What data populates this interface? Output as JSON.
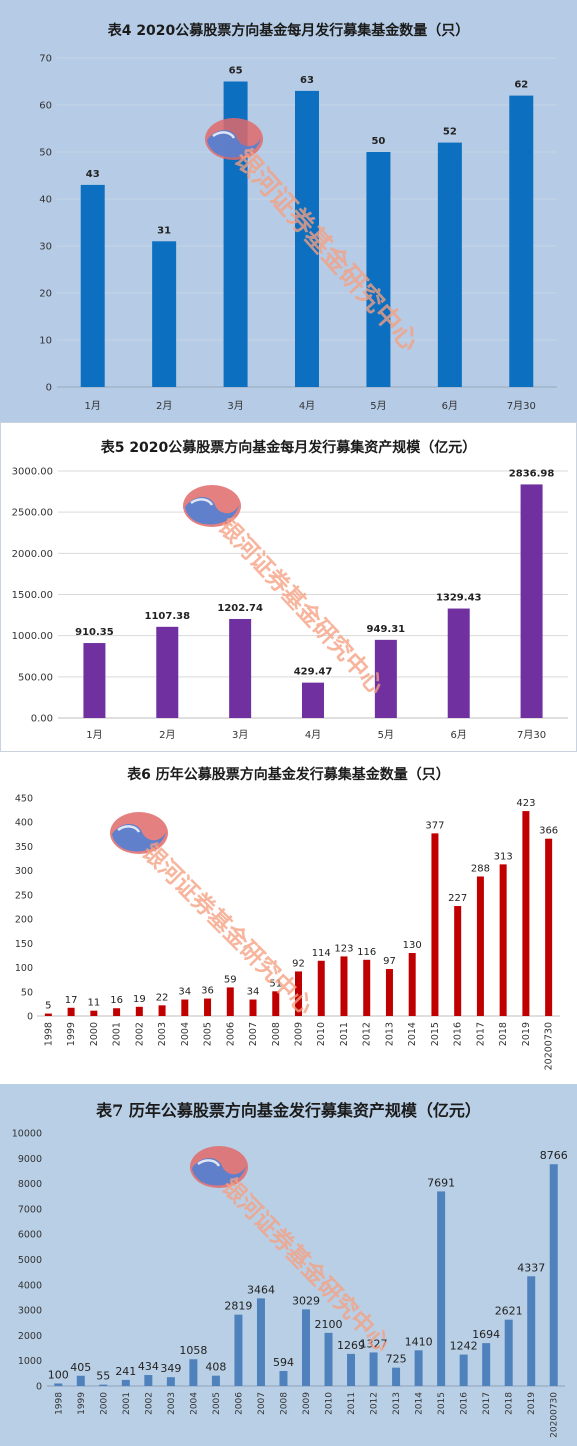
{
  "watermark": {
    "text": "银河证券基金研究中心"
  },
  "chart_data": [
    {
      "type": "bar",
      "title": "表4  2020公募股票方向基金每月发行募集基金数量（只）",
      "categories": [
        "1月",
        "2月",
        "3月",
        "4月",
        "5月",
        "6月",
        "7月30"
      ],
      "values": [
        43,
        31,
        65,
        63,
        50,
        52,
        62
      ],
      "labels": [
        "43",
        "31",
        "65",
        "63",
        "50",
        "52",
        "62"
      ],
      "ylim": [
        0,
        70
      ],
      "yticks": [
        "0",
        "10",
        "20",
        "30",
        "40",
        "50",
        "60",
        "70"
      ],
      "grid": true,
      "color": "#0c6fbf"
    },
    {
      "type": "bar",
      "title": "表5  2020公募股票方向基金每月发行募集资产规模（亿元）",
      "categories": [
        "1月",
        "2月",
        "3月",
        "4月",
        "5月",
        "6月",
        "7月30"
      ],
      "values": [
        910.35,
        1107.38,
        1202.74,
        429.47,
        949.31,
        1329.43,
        2836.98
      ],
      "labels": [
        "910.35",
        "1107.38",
        "1202.74",
        "429.47",
        "949.31",
        "1329.43",
        "2836.98"
      ],
      "ylim": [
        0,
        3000
      ],
      "yticks": [
        "0.00",
        "500.00",
        "1000.00",
        "1500.00",
        "2000.00",
        "2500.00",
        "3000.00"
      ],
      "grid": true,
      "color": "#7030a0"
    },
    {
      "type": "bar",
      "title": "表6  历年公募股票方向基金发行募集基金数量（只）",
      "categories": [
        "1998",
        "1999",
        "2000",
        "2001",
        "2002",
        "2003",
        "2004",
        "2005",
        "2006",
        "2007",
        "2008",
        "2009",
        "2010",
        "2011",
        "2012",
        "2013",
        "2014",
        "2015",
        "2016",
        "2017",
        "2018",
        "2019",
        "20200730"
      ],
      "values": [
        5,
        17,
        11,
        16,
        19,
        22,
        34,
        36,
        59,
        34,
        51,
        92,
        114,
        123,
        116,
        97,
        130,
        377,
        227,
        288,
        313,
        423,
        366
      ],
      "labels": [
        "5",
        "17",
        "11",
        "16",
        "19",
        "22",
        "34",
        "36",
        "59",
        "34",
        "51",
        "92",
        "114",
        "123",
        "116",
        "97",
        "130",
        "377",
        "227",
        "288",
        "313",
        "423",
        "366"
      ],
      "ylim": [
        0,
        450
      ],
      "yticks": [
        "0",
        "50",
        "100",
        "150",
        "200",
        "250",
        "300",
        "350",
        "400",
        "450"
      ],
      "grid": false,
      "color": "#c00000"
    },
    {
      "type": "bar",
      "title": "表7  历年公募股票方向基金发行募集资产规模（亿元）",
      "categories": [
        "1998",
        "1999",
        "2000",
        "2001",
        "2002",
        "2003",
        "2004",
        "2005",
        "2006",
        "2007",
        "2008",
        "2009",
        "2010",
        "2011",
        "2012",
        "2013",
        "2014",
        "2015",
        "2016",
        "2017",
        "2018",
        "2019",
        "20200730"
      ],
      "values": [
        100,
        405,
        55,
        241,
        434,
        349,
        1058,
        408,
        2819,
        3464,
        594,
        3029,
        2100,
        1269,
        1327,
        725,
        1410,
        7691,
        1242,
        1694,
        2621,
        4337,
        8766
      ],
      "labels": [
        "100",
        "405",
        "55",
        "241",
        "434",
        "349",
        "1058",
        "408",
        "2819",
        "3464",
        "594",
        "3029",
        "2100",
        "1269",
        "1327",
        "725",
        "1410",
        "7691",
        "1242",
        "1694",
        "2621",
        "4337",
        "8766"
      ],
      "ylim": [
        0,
        10000
      ],
      "yticks": [
        "0",
        "1000",
        "2000",
        "3000",
        "4000",
        "5000",
        "6000",
        "7000",
        "8000",
        "9000",
        "10000"
      ],
      "grid": false,
      "color": "#4f81bd"
    }
  ]
}
